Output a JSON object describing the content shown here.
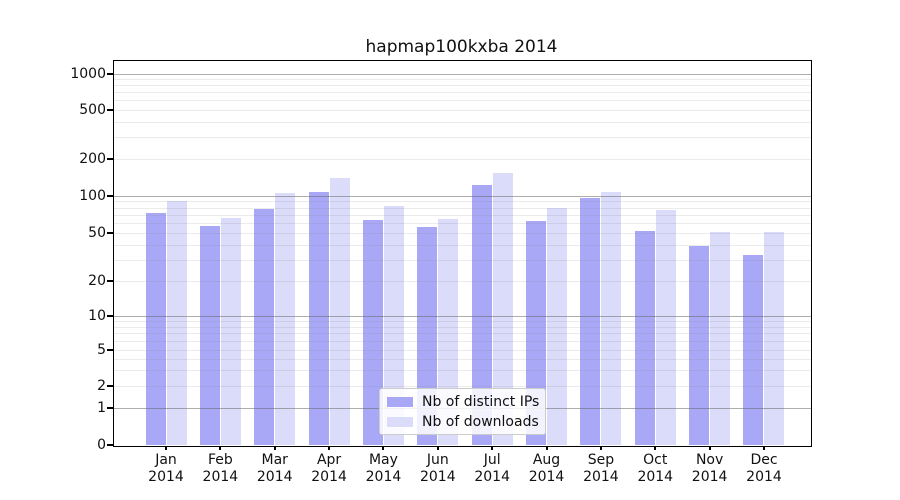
{
  "title": "hapmap100kxba 2014",
  "chart_data": {
    "type": "bar",
    "title": "hapmap100kxba 2014",
    "categories": [
      "Jan 2014",
      "Feb 2014",
      "Mar 2014",
      "Apr 2014",
      "May 2014",
      "Jun 2014",
      "Jul 2014",
      "Aug 2014",
      "Sep 2014",
      "Oct 2014",
      "Nov 2014",
      "Dec 2014"
    ],
    "x_tick_months": [
      "Jan",
      "Feb",
      "Mar",
      "Apr",
      "May",
      "Jun",
      "Jul",
      "Aug",
      "Sep",
      "Oct",
      "Nov",
      "Dec"
    ],
    "x_tick_year": "2014",
    "series": [
      {
        "name": "Nb of distinct IPs",
        "color": "#a8a8f7",
        "values": [
          72,
          57,
          78,
          107,
          64,
          56,
          123,
          62,
          96,
          52,
          39,
          33
        ]
      },
      {
        "name": "Nb of downloads",
        "color": "#dbdbfa",
        "values": [
          91,
          66,
          106,
          140,
          83,
          65,
          152,
          80,
          107,
          76,
          51,
          51
        ]
      }
    ],
    "yscale": "log",
    "y_ticks": [
      0,
      1,
      2,
      5,
      10,
      20,
      50,
      100,
      200,
      500,
      1000
    ],
    "ylim": [
      0,
      1300
    ],
    "grid": true,
    "legend_position": "lower center"
  },
  "legend": {
    "items": [
      {
        "label": "Nb of distinct IPs",
        "color": "#a8a8f7"
      },
      {
        "label": "Nb of downloads",
        "color": "#dbdbfa"
      }
    ]
  },
  "colors": {
    "background": "#ffffff",
    "axis": "#000000",
    "grid_major": "#b0b0b0",
    "grid_minor": "#e8e8e8",
    "text": "#111111"
  }
}
